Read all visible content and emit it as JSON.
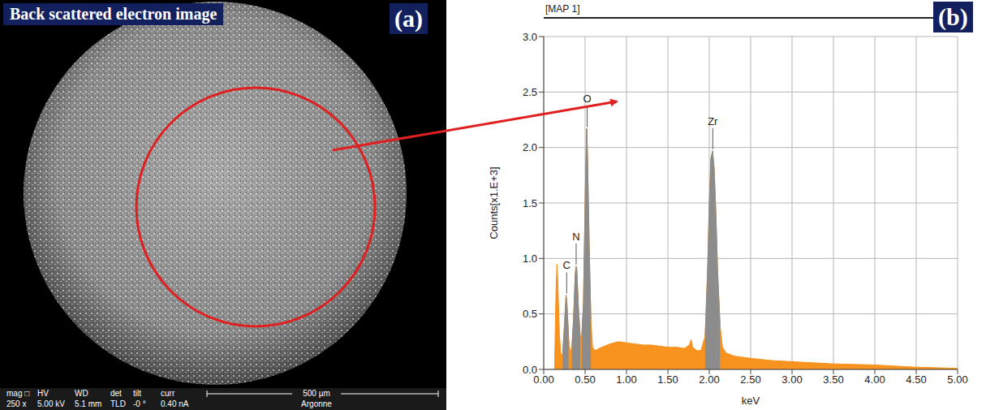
{
  "panel_a": {
    "panel_label": "(a)",
    "title": "Back scattered electron image",
    "info_bar": {
      "headers": [
        "mag □",
        "HV",
        "WD",
        "det",
        "tilt",
        "curr"
      ],
      "values": [
        "250 x",
        "5.00 kV",
        "5.1 mm",
        "TLD",
        "-0 °",
        "0.40 nA"
      ],
      "scale_bar": "500 µm",
      "footer": "Argonne"
    }
  },
  "chart_data": {
    "type": "area",
    "title": "[MAP 1]",
    "panel_label": "(b)",
    "x_label": "keV",
    "y_label": "Counts[x1.E+3]",
    "color": "#f7931e",
    "grid": true,
    "xlim": [
      0,
      5
    ],
    "xticks": [
      {
        "value": 0,
        "label": "0.00"
      },
      {
        "value": 0.5,
        "label": "0.50"
      },
      {
        "value": 1,
        "label": "1.00"
      },
      {
        "value": 1.5,
        "label": "1.50"
      },
      {
        "value": 2,
        "label": "2.00"
      },
      {
        "value": 2.5,
        "label": "2.50"
      },
      {
        "value": 3,
        "label": "3.00"
      },
      {
        "value": 3.5,
        "label": "3.50"
      },
      {
        "value": 4,
        "label": "4.00"
      },
      {
        "value": 4.5,
        "label": "4.50"
      },
      {
        "value": 5,
        "label": "5.00"
      }
    ],
    "ylim": [
      0,
      3
    ],
    "yticks": [
      {
        "value": 0,
        "label": "0.0"
      },
      0.5,
      {
        "value": 1,
        "label": "1.0"
      },
      1.5,
      {
        "value": 2,
        "label": "2.0"
      },
      2.5,
      {
        "value": 3,
        "label": "3.0"
      }
    ],
    "x": [
      0.13,
      0.15,
      0.16,
      0.17,
      0.19,
      0.21,
      0.23,
      0.25,
      0.27,
      0.28,
      0.3,
      0.32,
      0.34,
      0.36,
      0.38,
      0.39,
      0.4,
      0.42,
      0.44,
      0.46,
      0.48,
      0.5,
      0.51,
      0.52,
      0.53,
      0.55,
      0.57,
      0.59,
      0.62,
      0.7,
      0.8,
      0.9,
      1.0,
      1.1,
      1.2,
      1.3,
      1.4,
      1.5,
      1.6,
      1.7,
      1.76,
      1.78,
      1.8,
      1.85,
      1.9,
      1.95,
      1.98,
      2.0,
      2.02,
      2.04,
      2.06,
      2.08,
      2.1,
      2.13,
      2.16,
      2.2,
      2.3,
      2.4,
      2.5,
      2.75,
      3.0,
      3.25,
      3.5,
      3.75,
      4.0,
      4.25,
      4.5,
      4.75,
      5.0
    ],
    "values": [
      0,
      0.75,
      0.95,
      0.8,
      0.3,
      0.12,
      0.15,
      0.4,
      0.67,
      0.6,
      0.3,
      0.15,
      0.2,
      0.45,
      0.85,
      0.93,
      0.9,
      0.55,
      0.3,
      0.3,
      0.6,
      1.5,
      1.9,
      2.17,
      1.9,
      1.1,
      0.45,
      0.2,
      0.17,
      0.2,
      0.23,
      0.25,
      0.24,
      0.23,
      0.22,
      0.22,
      0.21,
      0.2,
      0.2,
      0.19,
      0.22,
      0.27,
      0.2,
      0.17,
      0.17,
      0.3,
      0.9,
      1.5,
      1.9,
      1.97,
      1.8,
      1.4,
      0.9,
      0.4,
      0.2,
      0.15,
      0.12,
      0.11,
      0.1,
      0.08,
      0.07,
      0.06,
      0.05,
      0.045,
      0.04,
      0.03,
      0.02,
      0.015,
      0.01
    ],
    "peaks": [
      {
        "label": "C",
        "energy": 0.277,
        "range": [
          0.23,
          0.3
        ],
        "color": "#8c8c8c"
      },
      {
        "label": "N",
        "energy": 0.392,
        "range": [
          0.34,
          0.44
        ],
        "color": "#8c8c8c"
      },
      {
        "label": "O",
        "energy": 0.525,
        "range": [
          0.46,
          0.57
        ],
        "color": "#8c8c8c"
      },
      {
        "label": "Zr",
        "energy": 2.042,
        "range": [
          1.95,
          2.13
        ],
        "color": "#8c8c8c"
      }
    ]
  }
}
